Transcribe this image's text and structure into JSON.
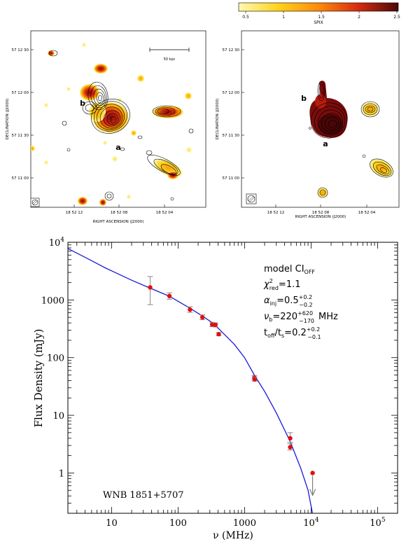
{
  "colorbar": {
    "label": "SPIX",
    "ticks": [
      "0.5",
      "1",
      "1.5",
      "2",
      "2.5"
    ],
    "stops": [
      "#fff9b0",
      "#ffd21a",
      "#ff8a0a",
      "#d62b0f",
      "#4a0a0a"
    ]
  },
  "left_map": {
    "ylabel": "DECLINATION (J2000)",
    "xlabel": "RIGHT ASCENSION (J2000)",
    "yticks": [
      "57 12 30",
      "57 12 00",
      "57 11 30",
      "57 11 00"
    ],
    "xticks": [
      "18 52 12",
      "18 52 08",
      "18 52 04"
    ],
    "scalebar_label": "50 kpc",
    "label_a": "a",
    "label_b": "b"
  },
  "right_map": {
    "ylabel": "DECLINATION (J2000)",
    "xlabel": "RIGHT ASCENSION (J2000)",
    "yticks": [
      "57 12 30",
      "57 12 00",
      "57 11 30",
      "57 11 00"
    ],
    "xticks": [
      "18 52 12",
      "18 52 08",
      "18 52 04"
    ],
    "label_a": "a",
    "label_b": "b"
  },
  "chart_data": {
    "type": "scatter",
    "title": "WNB 1851+5707",
    "xlabel": "ν (MHz)",
    "ylabel": "Flux Density (mJy)",
    "xscale": "log",
    "yscale": "log",
    "xlim": [
      2.2,
      200000
    ],
    "ylim": [
      0.2,
      10000
    ],
    "xticks": [
      {
        "value": 10,
        "label": "10"
      },
      {
        "value": 100,
        "label": "100"
      },
      {
        "value": 1000,
        "label": "1000"
      },
      {
        "value": 10000,
        "base": "10",
        "exp": "4"
      },
      {
        "value": 100000,
        "base": "10",
        "exp": "5"
      }
    ],
    "yticks": [
      {
        "value": 1,
        "label": "1"
      },
      {
        "value": 10,
        "label": "10"
      },
      {
        "value": 100,
        "label": "100"
      },
      {
        "value": 1000,
        "label": "1000"
      },
      {
        "value": 10000,
        "base": "10",
        "exp": "4"
      }
    ],
    "points": [
      {
        "x": 38,
        "y": 1650,
        "err_lo": 830,
        "err_hi": 2550
      },
      {
        "x": 74,
        "y": 1170,
        "err_lo": 1030,
        "err_hi": 1330
      },
      {
        "x": 151,
        "y": 680,
        "err_lo": 610,
        "err_hi": 760
      },
      {
        "x": 232,
        "y": 500,
        "err_lo": 455,
        "err_hi": 550
      },
      {
        "x": 325,
        "y": 375,
        "err_lo": 345,
        "err_hi": 410
      },
      {
        "x": 365,
        "y": 370,
        "err_lo": 340,
        "err_hi": 400
      },
      {
        "x": 408,
        "y": 255,
        "err_lo": 240,
        "err_hi": 272
      },
      {
        "x": 1400,
        "y": 45,
        "err_lo": 41,
        "err_hi": 49
      },
      {
        "x": 1420,
        "y": 42,
        "err_lo": 39,
        "err_hi": 46
      },
      {
        "x": 4850,
        "y": 4.0,
        "err_lo": 3.4,
        "err_hi": 5.0
      },
      {
        "x": 4850,
        "y": 2.8,
        "err_lo": 2.5,
        "err_hi": 3.2
      }
    ],
    "upper_limit": {
      "x": 10550,
      "y": 1.0
    },
    "model_curve": {
      "name": "model CI_OFF",
      "color": "#1a1adc",
      "x": [
        2.2,
        3,
        5,
        8,
        12,
        20,
        38,
        74,
        150,
        230,
        330,
        400,
        700,
        1000,
        1400,
        2000,
        3000,
        4850,
        7000,
        9000,
        10500
      ],
      "y": [
        7800,
        6500,
        4800,
        3600,
        2900,
        2200,
        1600,
        1160,
        720,
        530,
        400,
        325,
        170,
        100,
        50,
        26,
        11,
        3.5,
        1.2,
        0.5,
        0.2
      ]
    },
    "annotations": {
      "model_name": "model CI",
      "model_sub": "OFF",
      "chi_label": "χ",
      "chi_sup": "2",
      "chi_sub": "red",
      "chi_value": "=1.1",
      "alpha_label": "α",
      "alpha_sub": "inj",
      "alpha_value": "=0.5",
      "alpha_plus": "+0.2",
      "alpha_minus": "−0.2",
      "nu_label": "ν",
      "nu_sub": "b",
      "nu_value": "=220",
      "nu_plus": "+620",
      "nu_minus": "−170",
      "nu_unit": "MHz",
      "toff_label": "t",
      "toff_sub": "off",
      "toff_slash": "/t",
      "ts_sub": "s",
      "toff_value": "=0.2",
      "toff_plus": "+0.2",
      "toff_minus": "−0.1"
    }
  }
}
